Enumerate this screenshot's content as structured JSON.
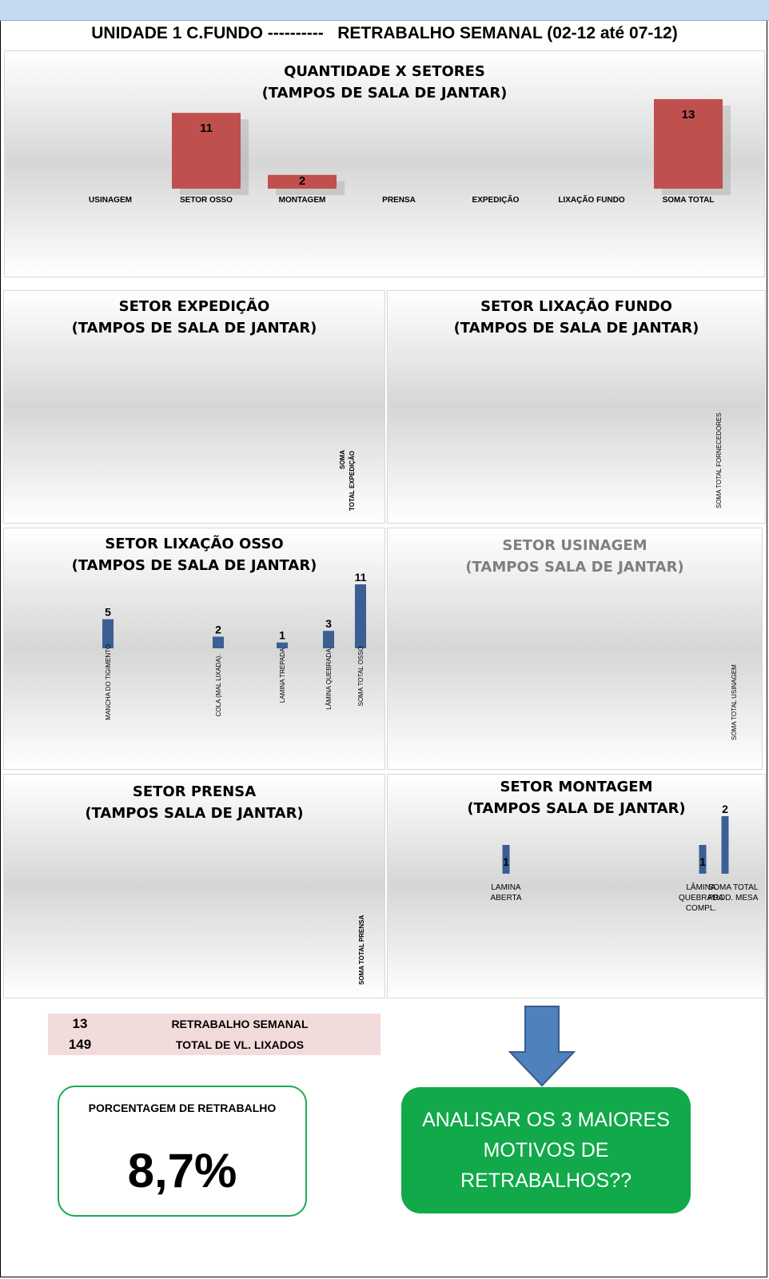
{
  "header": {
    "title": "UNIDADE 1 C.FUNDO ----------   RETRABALHO SEMANAL (02-12 até 07-12)"
  },
  "colors": {
    "main_bar": "#c0504d",
    "sector_bar": "#3b5f93",
    "accent_green": "#11a94a",
    "arrow": "#4f81bd",
    "summary_bg": "#f2dcdb"
  },
  "chart_data": [
    {
      "id": "quantidade-setores",
      "type": "bar",
      "title": [
        "QUANTIDADE X SETORES",
        "(TAMPOS DE SALA DE JANTAR)"
      ],
      "categories": [
        "USINAGEM",
        "SETOR  OSSO",
        "MONTAGEM",
        "PRENSA",
        "EXPEDIÇÃO",
        "LIXAÇÃO FUNDO",
        "SOMA TOTAL"
      ],
      "values": [
        null,
        11,
        2,
        null,
        null,
        null,
        13
      ],
      "ylim": [
        0,
        13
      ],
      "grid": false
    },
    {
      "id": "setor-expedicao",
      "type": "bar",
      "title": [
        "SETOR  EXPEDIÇÃO",
        "(TAMPOS DE SALA DE JANTAR)"
      ],
      "categories": [
        "SOMA TOTAL EXPEDIÇÃO"
      ],
      "values": [
        null
      ]
    },
    {
      "id": "setor-lixacao-fundo",
      "type": "bar",
      "title": [
        "SETOR  LIXAÇÃO FUNDO",
        "(TAMPOS DE SALA DE JANTAR)"
      ],
      "categories": [
        "SOMA TOTAL FORNECEDORES"
      ],
      "values": [
        null
      ]
    },
    {
      "id": "setor-lixacao-osso",
      "type": "bar",
      "title": [
        "SETOR  LIXAÇÃO OSSO",
        "(TAMPOS DE SALA DE JANTAR)"
      ],
      "categories": [
        "MANCHA DO TIGIMENTO",
        "COLA (MAL LIXADA).",
        "LAMINA TREPADA",
        "LÂMINA QUEBRADA.",
        "SOMA TOTAL OSSO"
      ],
      "values": [
        5,
        2,
        1,
        3,
        11
      ],
      "ylim": [
        0,
        11
      ]
    },
    {
      "id": "setor-usinagem",
      "type": "bar",
      "title": [
        "SETOR USINAGEM",
        "(TAMPOS SALA DE JANTAR)"
      ],
      "categories": [
        "SOMA TOTAL USINAGEM"
      ],
      "values": [
        null
      ]
    },
    {
      "id": "setor-prensa",
      "type": "bar",
      "title": [
        "SETOR PRENSA",
        "(TAMPOS SALA DE JANTAR)"
      ],
      "categories": [
        "SOMA TOTAL PRENSA"
      ],
      "values": [
        null
      ]
    },
    {
      "id": "setor-montagem",
      "type": "bar",
      "title": [
        "SETOR MONTAGEM",
        "(TAMPOS SALA DE JANTAR)"
      ],
      "categories": [
        "LAMINA ABERTA",
        "LÂMINA QUEBRADA COMPL.",
        "SOMA TOTAL PROD. MESA"
      ],
      "values": [
        1,
        1,
        2
      ],
      "ylim": [
        0,
        2
      ]
    }
  ],
  "summary": {
    "rows": [
      {
        "value": "13",
        "label": "RETRABALHO SEMANAL"
      },
      {
        "value": "149",
        "label": "TOTAL DE VL. LIXADOS"
      }
    ]
  },
  "percentage": {
    "label": "PORCENTAGEM DE RETRABALHO",
    "value": "8,7%"
  },
  "callout": {
    "lines": [
      "ANALISAR OS 3 MAIORES",
      "MOTIVOS DE",
      "RETRABALHOS??"
    ]
  }
}
